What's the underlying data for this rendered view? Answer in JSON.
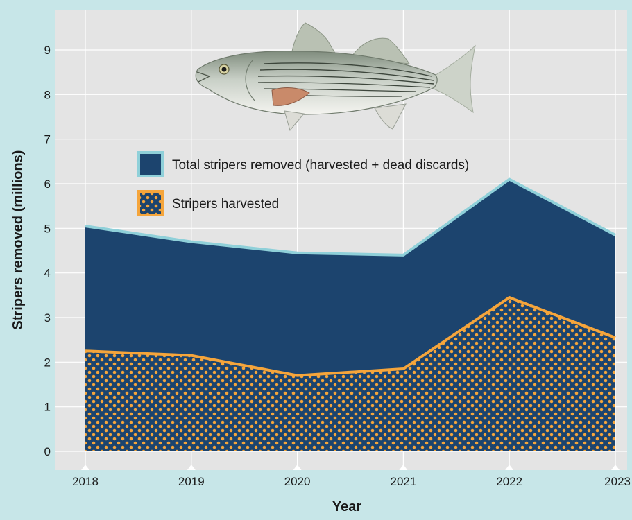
{
  "chart_data": {
    "type": "area",
    "xlabel": "Year",
    "ylabel": "Stripers removed (millions)",
    "x": [
      "2018",
      "2019",
      "2020",
      "2021",
      "2022",
      "2023"
    ],
    "ylim": [
      0,
      10
    ],
    "yticks": [
      0,
      1,
      2,
      3,
      4,
      5,
      6,
      7,
      8,
      9
    ],
    "grid": true,
    "legend_position": "center",
    "series": [
      {
        "name": "Total stripers removed (harvested + dead discards)",
        "values": [
          5.05,
          4.7,
          4.45,
          4.4,
          6.1,
          4.85
        ],
        "fill": "#1c446e",
        "line": "#8fd0d9"
      },
      {
        "name": "Stripers harvested",
        "values": [
          2.25,
          2.15,
          1.7,
          1.85,
          3.45,
          2.55
        ],
        "fill": "#1c446e",
        "dots": "#f5a53b",
        "line": "#f5a53b"
      }
    ]
  },
  "colors": {
    "page_background": "#c7e6e8",
    "plot_background": "#e4e4e4",
    "grid": "#ffffff"
  },
  "illustration": "striped-bass"
}
